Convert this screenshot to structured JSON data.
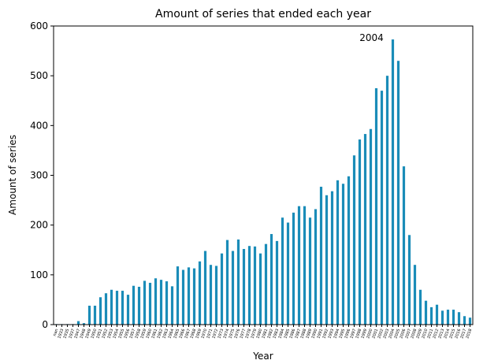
{
  "chart_data": {
    "type": "bar",
    "title": "Amount of series that ended each year",
    "x_label": "Year",
    "y_label": "Amount of series",
    "categories": [
      "nan",
      "1933",
      "1935",
      "1937",
      "1947",
      "1948",
      "1949",
      "1950",
      "1951",
      "1952",
      "1953",
      "1954",
      "1955",
      "1956",
      "1957",
      "1958",
      "1959",
      "1960",
      "1961",
      "1962",
      "1963",
      "1964",
      "1965",
      "1966",
      "1967",
      "1968",
      "1969",
      "1970",
      "1971",
      "1972",
      "1973",
      "1974",
      "1975",
      "1976",
      "1977",
      "1978",
      "1979",
      "1980",
      "1981",
      "1982",
      "1983",
      "1984",
      "1985",
      "1986",
      "1987",
      "1988",
      "1989",
      "1990",
      "1991",
      "1992",
      "1993",
      "1994",
      "1995",
      "1996",
      "1997",
      "1998",
      "1999",
      "2000",
      "2001",
      "2002",
      "2003",
      "2004",
      "2005",
      "2006",
      "2007",
      "2008",
      "2009",
      "2010",
      "2011",
      "2012",
      "2013",
      "2014",
      "2015",
      "2016",
      "2017",
      "2018"
    ],
    "values": [
      1,
      1,
      1,
      1,
      7,
      3,
      38,
      38,
      55,
      63,
      70,
      68,
      68,
      60,
      78,
      76,
      88,
      84,
      93,
      90,
      87,
      77,
      117,
      110,
      115,
      113,
      127,
      148,
      120,
      118,
      143,
      170,
      148,
      171,
      152,
      158,
      157,
      143,
      162,
      182,
      168,
      215,
      205,
      225,
      238,
      238,
      215,
      232,
      277,
      260,
      268,
      290,
      283,
      298,
      340,
      372,
      383,
      393,
      475,
      470,
      500,
      573,
      530,
      318,
      180,
      120,
      70,
      48,
      35,
      40,
      28,
      30,
      30,
      25,
      17,
      14
    ],
    "color": "#1a8cb8",
    "ylim": [
      0,
      600
    ],
    "yticks": [
      0,
      100,
      200,
      300,
      400,
      500,
      600
    ],
    "annotations": [
      {
        "text": "2004",
        "category": "2004"
      }
    ]
  }
}
